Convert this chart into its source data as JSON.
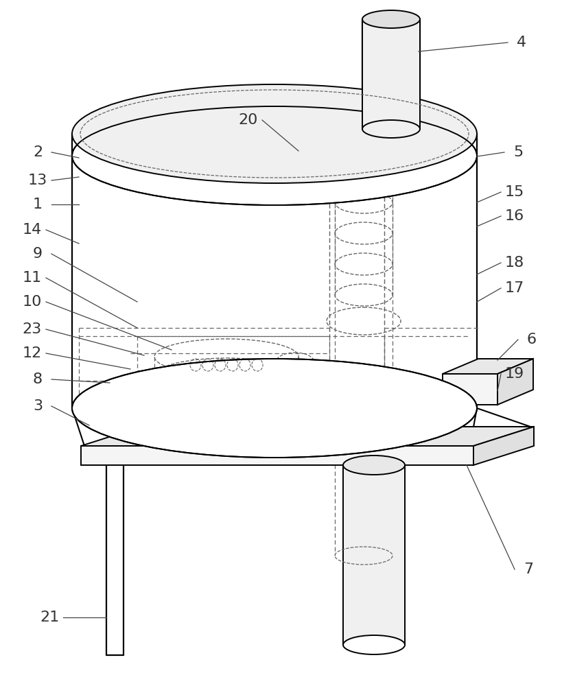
{
  "bg": "#ffffff",
  "lc": "#000000",
  "dc": "#666666",
  "figsize": [
    8.19,
    10.0
  ],
  "dpi": 100
}
